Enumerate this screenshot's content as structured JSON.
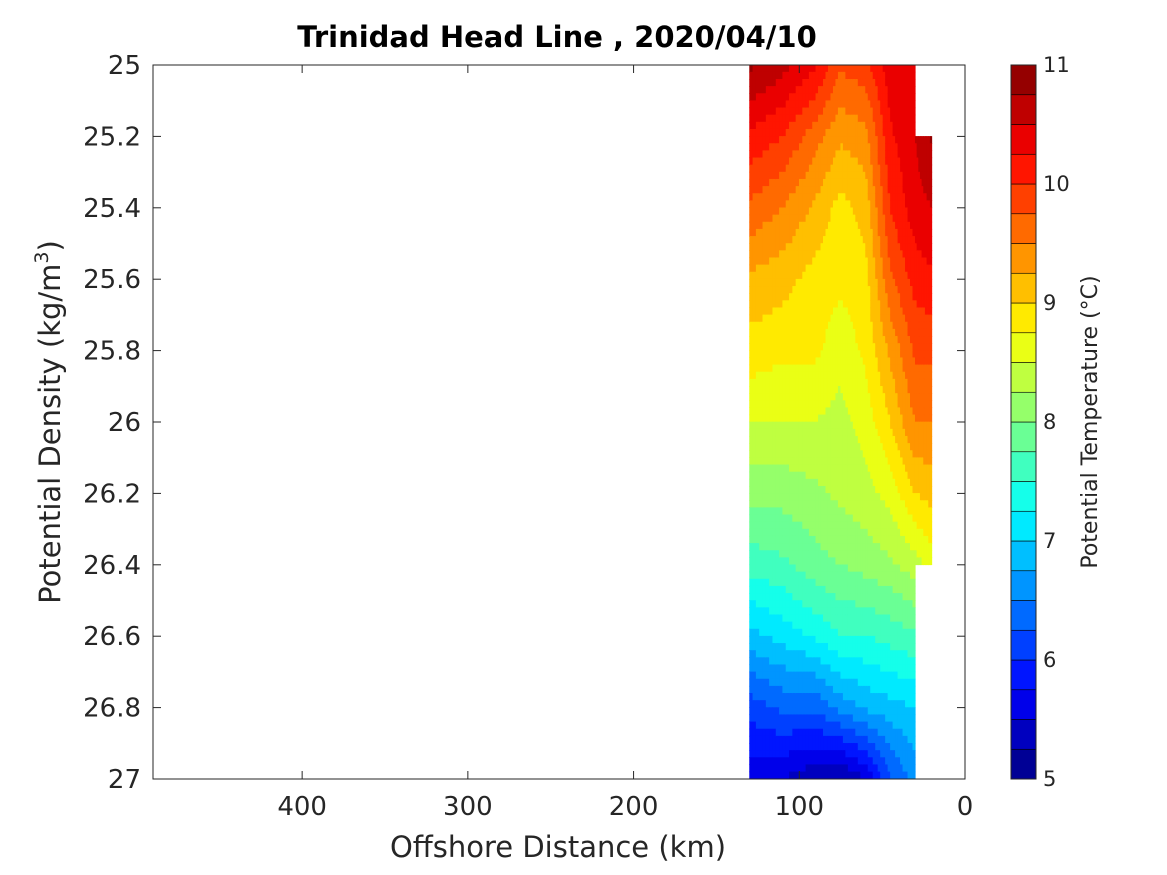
{
  "chart_data": {
    "type": "contour",
    "title": "Trinidad Head Line , 2020/04/10",
    "xlabel": "Offshore Distance (km)",
    "ylabel_prefix": "Potential Density (kg/m",
    "ylabel_sup": "3",
    "ylabel_suffix": ")",
    "x_ticks": [
      "400",
      "300",
      "200",
      "100",
      "0"
    ],
    "y_ticks": [
      "25",
      "25.2",
      "25.4",
      "25.6",
      "25.8",
      "26",
      "26.2",
      "26.4",
      "26.6",
      "26.8",
      "27"
    ],
    "xlim": [
      490,
      0
    ],
    "ylim": [
      25,
      27
    ],
    "x_reversed": true,
    "y_reversed": true,
    "colorbar": {
      "label": "Potential Temperature (°C)",
      "ticks": [
        "5",
        "6",
        "7",
        "8",
        "9",
        "10",
        "11"
      ],
      "range": [
        5,
        11
      ],
      "step": 0.25,
      "colormap": "jet"
    },
    "stations_km": [
      130,
      110,
      90,
      75,
      60,
      45,
      30,
      20
    ],
    "sections": [
      {
        "x": 130,
        "values": [
          10.8,
          10.2,
          9.7,
          9.2,
          8.9,
          8.5,
          8.1,
          7.6,
          6.9,
          6.1,
          5.6
        ]
      },
      {
        "x": 110,
        "values": [
          10.6,
          10.0,
          9.5,
          9.1,
          8.8,
          8.5,
          8.1,
          7.7,
          7.1,
          6.3,
          5.5
        ]
      },
      {
        "x": 90,
        "values": [
          10.3,
          9.6,
          9.2,
          8.9,
          8.8,
          8.5,
          8.2,
          7.9,
          7.3,
          6.3,
          5.3
        ]
      },
      {
        "x": 75,
        "values": [
          9.8,
          9.3,
          8.9,
          8.8,
          8.6,
          8.4,
          8.3,
          8.0,
          7.5,
          6.6,
          5.2
        ]
      },
      {
        "x": 60,
        "values": [
          9.9,
          9.4,
          9.1,
          8.9,
          8.8,
          8.6,
          8.4,
          8.1,
          7.5,
          6.8,
          5.5
        ]
      },
      {
        "x": 45,
        "values": [
          10.4,
          10.2,
          10.0,
          9.7,
          9.3,
          9.0,
          8.6,
          8.2,
          7.6,
          6.9,
          6.2
        ]
      },
      {
        "x": 30,
        "values": [
          10.5,
          10.5,
          10.4,
          10.1,
          9.8,
          9.5,
          9.0,
          8.4,
          7.7,
          7.0,
          6.6
        ]
      },
      {
        "x": 20,
        "values": [
          null,
          10.8,
          10.5,
          10.2,
          9.8,
          9.5,
          9.1,
          8.6,
          null,
          null,
          null
        ]
      }
    ]
  }
}
